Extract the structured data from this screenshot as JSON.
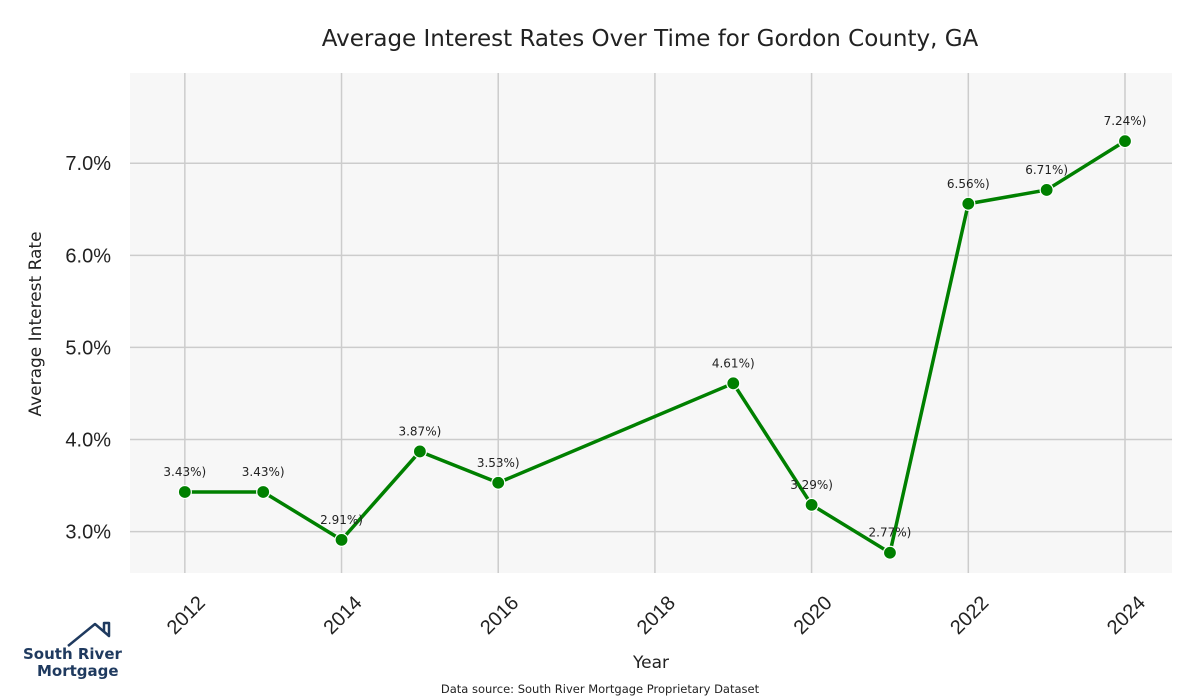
{
  "chart_data": {
    "type": "line",
    "title": "Average Interest Rates Over Time for Gordon County, GA",
    "xlabel": "Year",
    "ylabel": "Average Interest Rate",
    "x": [
      2012,
      2013,
      2014,
      2015,
      2016,
      2019,
      2020,
      2021,
      2022,
      2023,
      2024
    ],
    "series": [
      {
        "values": [
          3.43,
          3.43,
          2.91,
          3.87,
          3.53,
          4.61,
          3.29,
          2.77,
          6.56,
          6.71,
          7.24
        ],
        "labels": [
          "3.43%)",
          "3.43%)",
          "2.91%)",
          "3.87%)",
          "3.53%)",
          "4.61%)",
          "3.29%)",
          "2.77%)",
          "6.56%)",
          "6.71%)",
          "7.24%)"
        ],
        "color": "#008000"
      }
    ],
    "xticks": [
      2012,
      2014,
      2016,
      2018,
      2020,
      2022,
      2024
    ],
    "xtick_labels": [
      "2012",
      "2014",
      "2016",
      "2018",
      "2020",
      "2022",
      "2024"
    ],
    "yticks": [
      3.0,
      4.0,
      5.0,
      6.0,
      7.0
    ],
    "ytick_labels": [
      "3.0%",
      "4.0%",
      "5.0%",
      "6.0%",
      "7.0%"
    ],
    "xlim": [
      2011.3,
      2024.6
    ],
    "ylim": [
      2.55,
      7.98
    ],
    "grid": true,
    "plot_background": "#f7f7f7",
    "grid_color": "#cccccc"
  },
  "footer": {
    "source": "Data source: South River Mortgage Proprietary Dataset"
  },
  "logo": {
    "line1": "South River",
    "line2": "Mortgage",
    "color": "#1f3a5f"
  }
}
